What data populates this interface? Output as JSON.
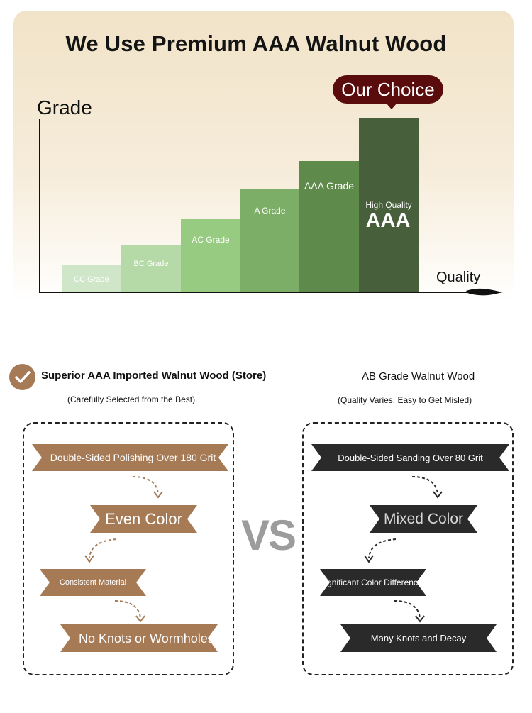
{
  "header": {
    "title": "We Use Premium AAA Walnut Wood"
  },
  "chart": {
    "y_axis_label": "Grade",
    "x_axis_label": "Quality",
    "badge": "Our Choice",
    "bars": [
      {
        "label": "CC Grade"
      },
      {
        "label": "BC Grade"
      },
      {
        "label": "AC Grade"
      },
      {
        "label": "A Grade"
      },
      {
        "label": "AAA Grade"
      },
      {
        "label": "High Quality",
        "big_label": "AAA"
      }
    ],
    "colors": {
      "cc": "#cfe6c8",
      "bc": "#b5daa8",
      "ac": "#98cb82",
      "a": "#7cae68",
      "aaa": "#5e8a4b",
      "hq": "#485f3b",
      "badge": "#5a0b0b"
    }
  },
  "left": {
    "icon": "checkmark-circle-icon",
    "title": "Superior AAA Imported Walnut Wood (Store)",
    "subtitle": "(Carefully Selected from the Best)",
    "steps": [
      "Double-Sided Polishing Over 180 Grit",
      "Even Color",
      "Consistent Material",
      "No Knots or Wormholes"
    ],
    "color": "#a57a55"
  },
  "vs_label": "VS",
  "right": {
    "title": "AB Grade Walnut Wood",
    "subtitle": "(Quality Varies, Easy to Get Misled)",
    "steps": [
      "Double-Sided Sanding Over 80 Grit",
      "Mixed Color",
      "Significant Color Differences",
      "Many Knots and Decay"
    ],
    "color": "#2a2a2a"
  }
}
